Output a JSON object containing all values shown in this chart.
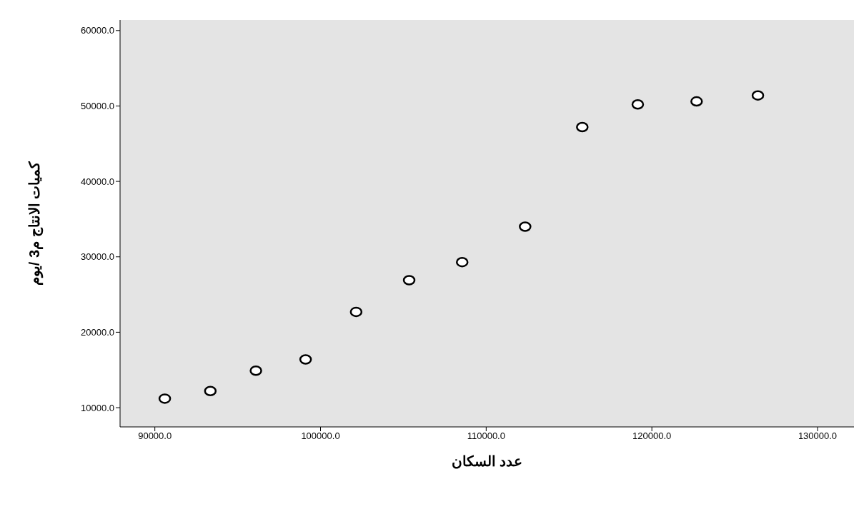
{
  "chart_data": {
    "type": "scatter",
    "xlabel": "عدد السكان",
    "ylabel": "كميات الانتاج م3 /يوم",
    "x": [
      90600,
      93350,
      96100,
      99100,
      102150,
      105350,
      108550,
      112350,
      115800,
      119150,
      122700,
      126400
    ],
    "values": [
      11200,
      12200,
      14900,
      16400,
      22700,
      26900,
      29300,
      34000,
      47200,
      50200,
      50600,
      51400
    ],
    "color": "#000000",
    "marker": "circle",
    "xlim": [
      87900,
      132200
    ],
    "xticks": [
      {
        "value": 90000,
        "label": "90000.0"
      },
      {
        "value": 100000,
        "label": "100000.0"
      },
      {
        "value": 110000,
        "label": "110000.0"
      },
      {
        "value": 120000,
        "label": "120000.0"
      },
      {
        "value": 130000,
        "label": "130000.0"
      }
    ],
    "ylim": [
      7450,
      61400
    ],
    "yticks": [
      {
        "value": 10000,
        "label": "10000.0"
      },
      {
        "value": 20000,
        "label": "20000.0"
      },
      {
        "value": 30000,
        "label": "30000.0"
      },
      {
        "value": 40000,
        "label": "40000.0"
      },
      {
        "value": 50000,
        "label": "50000.0"
      },
      {
        "value": 60000,
        "label": "60000.0"
      }
    ]
  }
}
